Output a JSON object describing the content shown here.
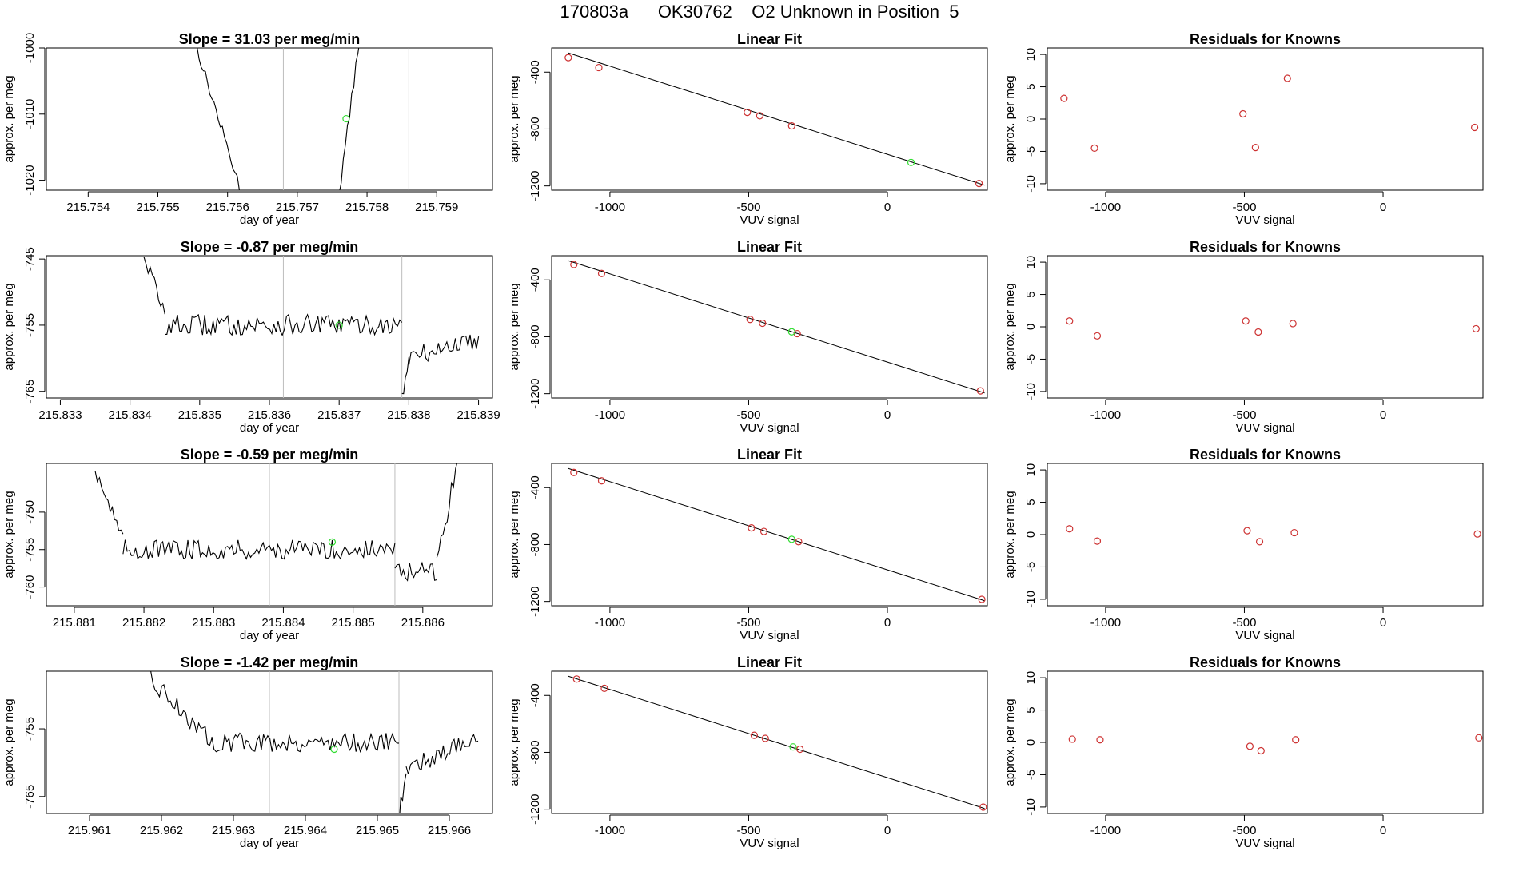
{
  "page": {
    "title": "170803a      OK30762    O2 Unknown in Position  5"
  },
  "colors": {
    "axis": "#000000",
    "line": "#000000",
    "vline": "#bdbdbd",
    "known": "#cd3333",
    "unknown": "#33dd33"
  },
  "chart_data": [
    {
      "row": 1,
      "timeseries": {
        "type": "line",
        "title": "Slope =  31.03  per meg/min",
        "xlabel": "day of year",
        "ylabel": "approx. per meg",
        "xlim": [
          215.7534,
          215.7598
        ],
        "ylim": [
          -1021.5,
          -1000.0
        ],
        "xticks": [
          215.754,
          215.755,
          215.756,
          215.757,
          215.758,
          215.759
        ],
        "xtick_labels": [
          "215.754",
          "215.755",
          "215.756",
          "215.757",
          "215.758",
          "215.759"
        ],
        "yticks": [
          -1000,
          -1010,
          -1020
        ],
        "ytick_labels": [
          "-1000",
          "-1010",
          "-1020"
        ],
        "vlines": [
          215.7568,
          215.7586
        ],
        "unknown_point": {
          "x": 215.7577,
          "y": -1010.7
        },
        "noise": 0.8,
        "segments": [
          {
            "start": 215.7555,
            "end": 215.7562,
            "y0": -998,
            "y1": -1022
          },
          {
            "start": 215.7576,
            "end": 215.7579,
            "y0": -1022,
            "y1": -998
          }
        ]
      },
      "fit": {
        "type": "scatter",
        "title": "Linear Fit",
        "xlabel": "VUV signal",
        "ylabel": "approx. per meg",
        "xlim": [
          -1210,
          360
        ],
        "ylim": [
          -1230,
          -230
        ],
        "xticks": [
          -1000,
          -500,
          0
        ],
        "xtick_labels": [
          "-1000",
          "-500",
          "0"
        ],
        "yticks": [
          -400,
          -800,
          -1200
        ],
        "ytick_labels": [
          "-400",
          "-800",
          "-1200"
        ],
        "line": {
          "x": [
            -1150,
            350
          ],
          "y": [
            -265,
            -1195
          ]
        },
        "knowns": [
          {
            "x": -1150,
            "y": -298
          },
          {
            "x": -1040,
            "y": -368
          },
          {
            "x": -505,
            "y": -683
          },
          {
            "x": -460,
            "y": -707
          },
          {
            "x": -345,
            "y": -778
          },
          {
            "x": 330,
            "y": -1183
          }
        ],
        "unknown": {
          "x": 85,
          "y": -1035
        }
      },
      "residuals": {
        "type": "scatter",
        "title": "Residuals for Knowns",
        "xlabel": "VUV signal",
        "ylabel": "approx. per meg",
        "xlim": [
          -1210,
          360
        ],
        "ylim": [
          -11,
          11
        ],
        "xticks": [
          -1000,
          -500,
          0
        ],
        "xtick_labels": [
          "-1000",
          "-500",
          "0"
        ],
        "yticks": [
          10,
          5,
          0,
          -5,
          -10
        ],
        "ytick_labels": [
          "10",
          "5",
          "0",
          "-5",
          "-10"
        ],
        "points": [
          {
            "x": -1150,
            "y": 3.2
          },
          {
            "x": -1040,
            "y": -4.5
          },
          {
            "x": -505,
            "y": 0.8
          },
          {
            "x": -460,
            "y": -4.4
          },
          {
            "x": -345,
            "y": 6.3
          },
          {
            "x": 330,
            "y": -1.3
          }
        ]
      }
    },
    {
      "row": 2,
      "timeseries": {
        "type": "line",
        "title": "Slope =  -0.87  per meg/min",
        "xlabel": "day of year",
        "ylabel": "approx. per meg",
        "xlim": [
          215.8328,
          215.8392
        ],
        "ylim": [
          -766,
          -744.5
        ],
        "xticks": [
          215.833,
          215.834,
          215.835,
          215.836,
          215.837,
          215.838,
          215.839
        ],
        "xtick_labels": [
          "215.833",
          "215.834",
          "215.835",
          "215.836",
          "215.837",
          "215.838",
          "215.839"
        ],
        "yticks": [
          -745,
          -755,
          -765
        ],
        "ytick_labels": [
          "-745",
          "-755",
          "-765"
        ],
        "vlines": [
          215.8362,
          215.8379
        ],
        "unknown_point": {
          "x": 215.837,
          "y": -755.0
        },
        "noise": 1.6,
        "segments": [
          {
            "start": 215.8342,
            "end": 215.8345,
            "y0": -744,
            "y1": -754
          },
          {
            "start": 215.8345,
            "end": 215.8379,
            "y0": -755,
            "y1": -755
          },
          {
            "start": 215.8379,
            "end": 215.838,
            "y0": -766,
            "y1": -760
          },
          {
            "start": 215.838,
            "end": 215.839,
            "y0": -760,
            "y1": -757
          }
        ]
      },
      "fit": {
        "type": "scatter",
        "title": "Linear Fit",
        "xlabel": "VUV signal",
        "ylabel": "approx. per meg",
        "xlim": [
          -1210,
          360
        ],
        "ylim": [
          -1230,
          -230
        ],
        "xticks": [
          -1000,
          -500,
          0
        ],
        "xtick_labels": [
          "-1000",
          "-500",
          "0"
        ],
        "yticks": [
          -400,
          -800,
          -1200
        ],
        "ytick_labels": [
          "-400",
          "-800",
          "-1200"
        ],
        "line": {
          "x": [
            -1150,
            350
          ],
          "y": [
            -265,
            -1195
          ]
        },
        "knowns": [
          {
            "x": -1130,
            "y": -292
          },
          {
            "x": -1030,
            "y": -355
          },
          {
            "x": -495,
            "y": -678
          },
          {
            "x": -450,
            "y": -705
          },
          {
            "x": -325,
            "y": -778
          },
          {
            "x": 335,
            "y": -1180
          }
        ],
        "unknown": {
          "x": -345,
          "y": -765
        }
      },
      "residuals": {
        "type": "scatter",
        "title": "Residuals for Knowns",
        "xlabel": "VUV signal",
        "ylabel": "approx. per meg",
        "xlim": [
          -1210,
          360
        ],
        "ylim": [
          -11,
          11
        ],
        "xticks": [
          -1000,
          -500,
          0
        ],
        "xtick_labels": [
          "-1000",
          "-500",
          "0"
        ],
        "yticks": [
          10,
          5,
          0,
          -5,
          -10
        ],
        "ytick_labels": [
          "10",
          "5",
          "0",
          "-5",
          "-10"
        ],
        "points": [
          {
            "x": -1130,
            "y": 0.9
          },
          {
            "x": -1030,
            "y": -1.4
          },
          {
            "x": -495,
            "y": 0.9
          },
          {
            "x": -450,
            "y": -0.8
          },
          {
            "x": -325,
            "y": 0.5
          },
          {
            "x": 335,
            "y": -0.3
          }
        ]
      }
    },
    {
      "row": 3,
      "timeseries": {
        "type": "line",
        "title": "Slope =  -0.59  per meg/min",
        "xlabel": "day of year",
        "ylabel": "approx. per meg",
        "xlim": [
          215.8806,
          215.887
        ],
        "ylim": [
          -762.5,
          -743.5
        ],
        "xticks": [
          215.881,
          215.882,
          215.883,
          215.884,
          215.885,
          215.886
        ],
        "xtick_labels": [
          "215.881",
          "215.882",
          "215.883",
          "215.884",
          "215.885",
          "215.886"
        ],
        "yticks": [
          -750,
          -755,
          -760
        ],
        "ytick_labels": [
          "-750",
          "-755",
          "-760"
        ],
        "vlines": [
          215.8838,
          215.8856
        ],
        "unknown_point": {
          "x": 215.8847,
          "y": -754.0
        },
        "noise": 1.3,
        "segments": [
          {
            "start": 215.8813,
            "end": 215.8817,
            "y0": -744,
            "y1": -754
          },
          {
            "start": 215.8817,
            "end": 215.8856,
            "y0": -755,
            "y1": -755
          },
          {
            "start": 215.8856,
            "end": 215.8862,
            "y0": -758,
            "y1": -758
          },
          {
            "start": 215.8862,
            "end": 215.8865,
            "y0": -757,
            "y1": -743
          }
        ]
      },
      "fit": {
        "type": "scatter",
        "title": "Linear Fit",
        "xlabel": "VUV signal",
        "ylabel": "approx. per meg",
        "xlim": [
          -1210,
          360
        ],
        "ylim": [
          -1230,
          -230
        ],
        "xticks": [
          -1000,
          -500,
          0
        ],
        "xtick_labels": [
          "-1000",
          "-500",
          "0"
        ],
        "yticks": [
          -400,
          -800,
          -1200
        ],
        "ytick_labels": [
          "-400",
          "-800",
          "-1200"
        ],
        "line": {
          "x": [
            -1150,
            350
          ],
          "y": [
            -265,
            -1195
          ]
        },
        "knowns": [
          {
            "x": -1130,
            "y": -293
          },
          {
            "x": -1030,
            "y": -352
          },
          {
            "x": -490,
            "y": -683
          },
          {
            "x": -445,
            "y": -708
          },
          {
            "x": -320,
            "y": -780
          },
          {
            "x": 340,
            "y": -1185
          }
        ],
        "unknown": {
          "x": -345,
          "y": -763
        }
      },
      "residuals": {
        "type": "scatter",
        "title": "Residuals for Knowns",
        "xlabel": "VUV signal",
        "ylabel": "approx. per meg",
        "xlim": [
          -1210,
          360
        ],
        "ylim": [
          -11,
          11
        ],
        "xticks": [
          -1000,
          -500,
          0
        ],
        "xtick_labels": [
          "-1000",
          "-500",
          "0"
        ],
        "yticks": [
          10,
          5,
          0,
          -5,
          -10
        ],
        "ytick_labels": [
          "10",
          "5",
          "0",
          "-5",
          "-10"
        ],
        "points": [
          {
            "x": -1130,
            "y": 0.9
          },
          {
            "x": -1030,
            "y": -1.0
          },
          {
            "x": -490,
            "y": 0.6
          },
          {
            "x": -445,
            "y": -1.1
          },
          {
            "x": -320,
            "y": 0.3
          },
          {
            "x": 340,
            "y": 0.1
          }
        ]
      }
    },
    {
      "row": 4,
      "timeseries": {
        "type": "line",
        "title": "Slope =  -1.42  per meg/min",
        "xlabel": "day of year",
        "ylabel": "approx. per meg",
        "xlim": [
          215.9604,
          215.9666
        ],
        "ylim": [
          -767.5,
          -746.5
        ],
        "xticks": [
          215.961,
          215.962,
          215.963,
          215.964,
          215.965,
          215.966
        ],
        "xtick_labels": [
          "215.961",
          "215.962",
          "215.963",
          "215.964",
          "215.965",
          "215.966"
        ],
        "yticks": [
          -755,
          -765
        ],
        "ytick_labels": [
          "-755",
          "-765"
        ],
        "vlines": [
          215.9635,
          215.9653
        ],
        "unknown_point": {
          "x": 215.9644,
          "y": -758.0
        },
        "noise": 1.4,
        "segments": [
          {
            "start": 215.9617,
            "end": 215.9627,
            "y0": -746,
            "y1": -757
          },
          {
            "start": 215.9627,
            "end": 215.9653,
            "y0": -757,
            "y1": -757
          },
          {
            "start": 215.9653,
            "end": 215.9654,
            "y0": -768,
            "y1": -761
          },
          {
            "start": 215.9654,
            "end": 215.9664,
            "y0": -761,
            "y1": -756
          }
        ]
      },
      "fit": {
        "type": "scatter",
        "title": "Linear Fit",
        "xlabel": "VUV signal",
        "ylabel": "approx. per meg",
        "xlim": [
          -1210,
          360
        ],
        "ylim": [
          -1230,
          -230
        ],
        "xticks": [
          -1000,
          -500,
          0
        ],
        "xtick_labels": [
          "-1000",
          "-500",
          "0"
        ],
        "yticks": [
          -400,
          -800,
          -1200
        ],
        "ytick_labels": [
          "-400",
          "-800",
          "-1200"
        ],
        "line": {
          "x": [
            -1150,
            350
          ],
          "y": [
            -265,
            -1195
          ]
        },
        "knowns": [
          {
            "x": -1120,
            "y": -285
          },
          {
            "x": -1020,
            "y": -350
          },
          {
            "x": -480,
            "y": -680
          },
          {
            "x": -440,
            "y": -702
          },
          {
            "x": -315,
            "y": -778
          },
          {
            "x": 345,
            "y": -1185
          }
        ],
        "unknown": {
          "x": -340,
          "y": -762
        }
      },
      "residuals": {
        "type": "scatter",
        "title": "Residuals for Knowns",
        "xlabel": "VUV signal",
        "ylabel": "approx. per meg",
        "xlim": [
          -1210,
          360
        ],
        "ylim": [
          -11,
          11
        ],
        "xticks": [
          -1000,
          -500,
          0
        ],
        "xtick_labels": [
          "-1000",
          "-500",
          "0"
        ],
        "yticks": [
          10,
          5,
          0,
          -5,
          -10
        ],
        "ytick_labels": [
          "10",
          "5",
          "0",
          "-5",
          "-10"
        ],
        "points": [
          {
            "x": -1120,
            "y": 0.5
          },
          {
            "x": -1020,
            "y": 0.4
          },
          {
            "x": -480,
            "y": -0.6
          },
          {
            "x": -440,
            "y": -1.3
          },
          {
            "x": -315,
            "y": 0.4
          },
          {
            "x": 345,
            "y": 0.7
          }
        ]
      }
    }
  ]
}
